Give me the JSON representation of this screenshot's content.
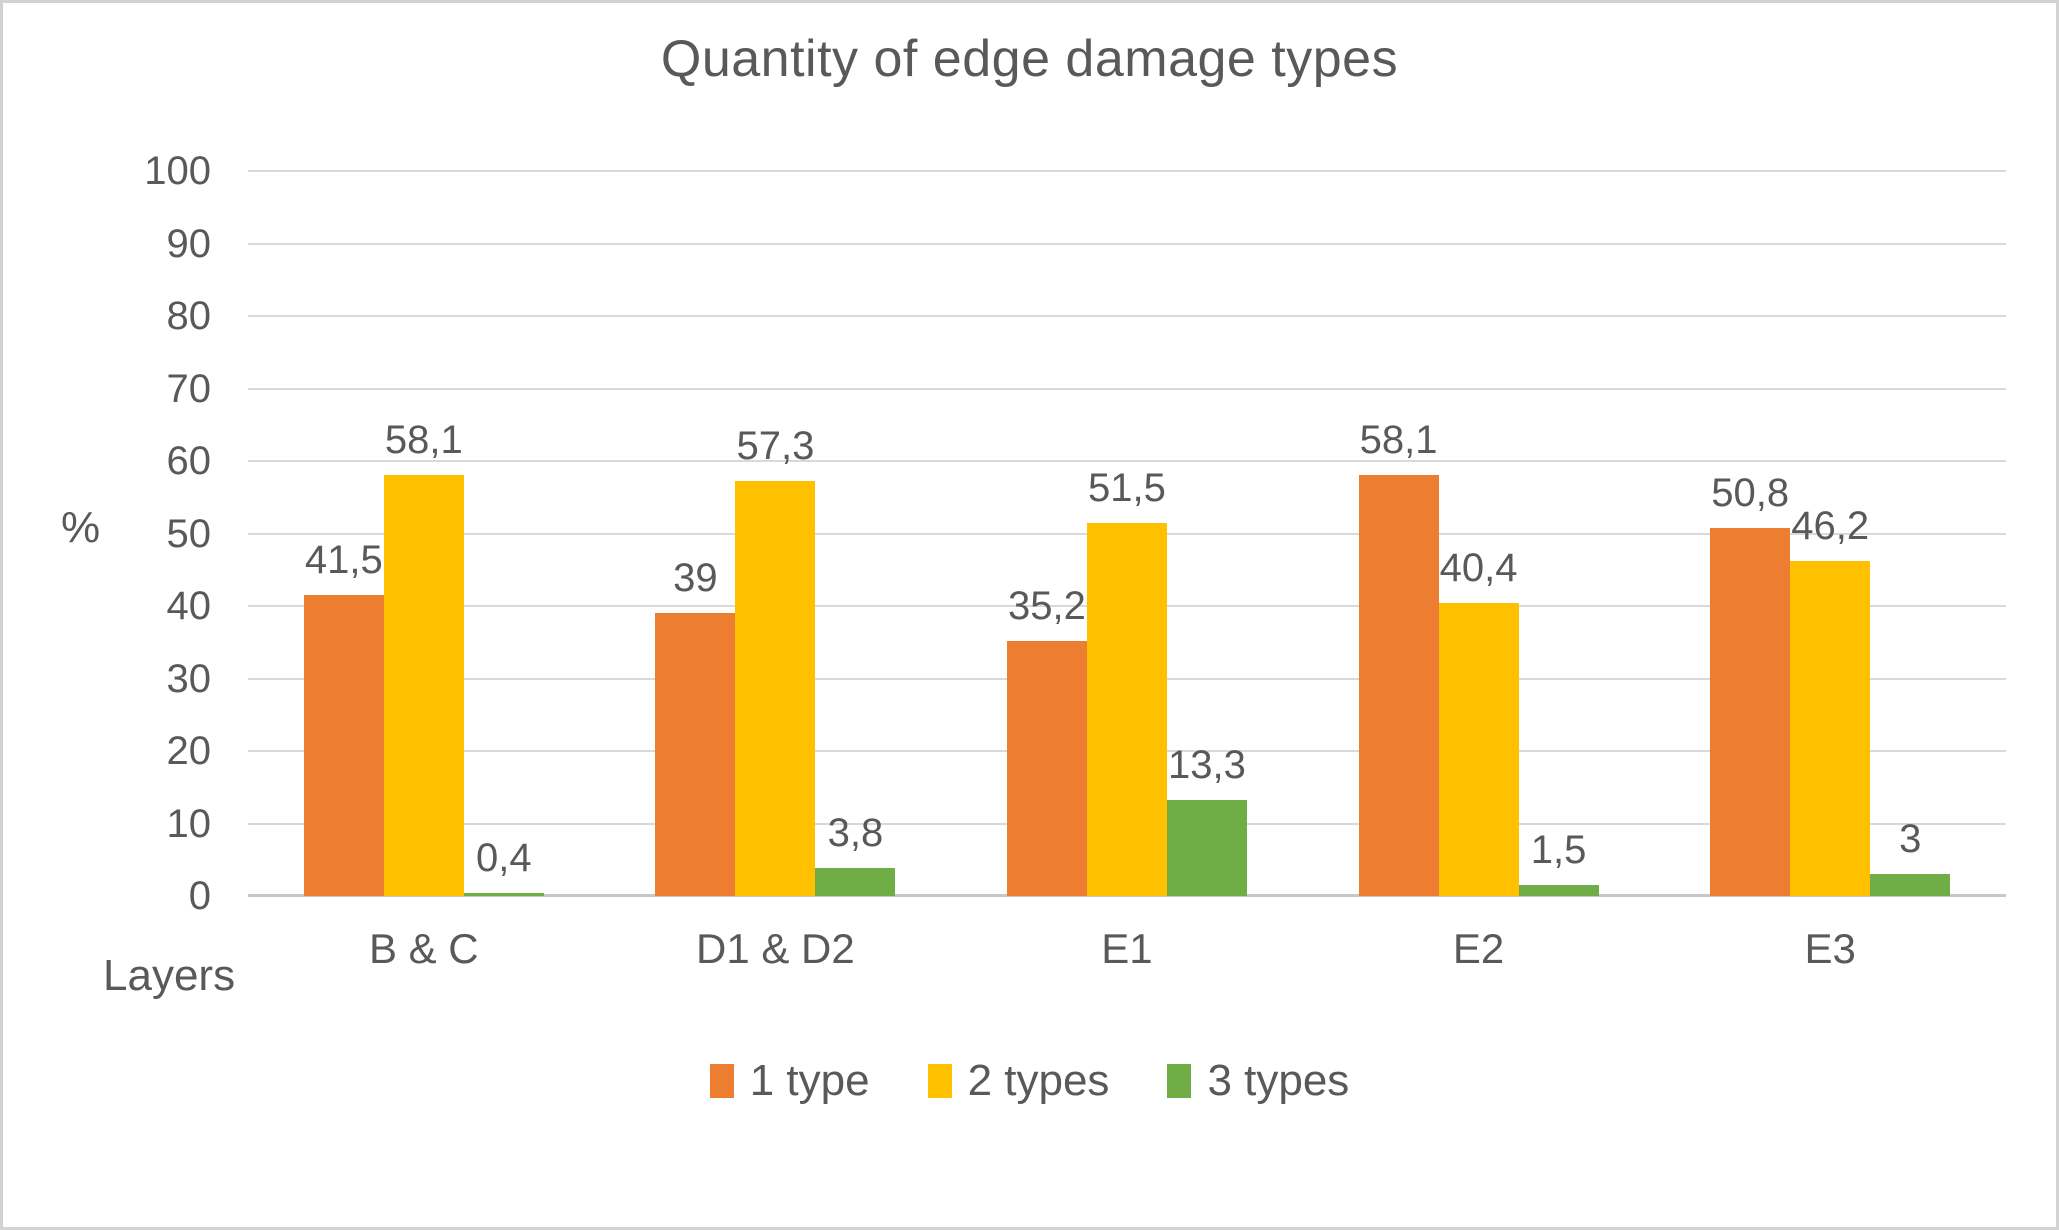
{
  "frame": {
    "background": "#ffffff",
    "border_color": "#d2d2d2"
  },
  "chart_data": {
    "type": "bar",
    "title": "Quantity of edge damage types",
    "ylabel": "%",
    "xlabel": "Layers",
    "ylim": [
      0,
      100
    ],
    "yticks": [
      0,
      10,
      20,
      30,
      40,
      50,
      60,
      70,
      80,
      90,
      100
    ],
    "grid": true,
    "legend_position": "bottom",
    "text_color": "#595959",
    "gridline_color": "#d9d9d9",
    "categories": [
      "B & C",
      "D1 & D2",
      "E1",
      "E2",
      "E3"
    ],
    "series": [
      {
        "name": "1 type",
        "color": "#ED7D31",
        "values": [
          41.5,
          39,
          35.2,
          58.1,
          50.8
        ],
        "labels": [
          "41,5",
          "39",
          "35,2",
          "58,1",
          "50,8"
        ]
      },
      {
        "name": "2 types",
        "color": "#FFC000",
        "values": [
          58.1,
          57.3,
          51.5,
          40.4,
          46.2
        ],
        "labels": [
          "58,1",
          "57,3",
          "51,5",
          "40,4",
          "46,2"
        ]
      },
      {
        "name": "3 types",
        "color": "#70AD47",
        "values": [
          0.4,
          3.8,
          13.3,
          1.5,
          3
        ],
        "labels": [
          "0,4",
          "3,8",
          "13,3",
          "1,5",
          "3"
        ]
      }
    ]
  }
}
